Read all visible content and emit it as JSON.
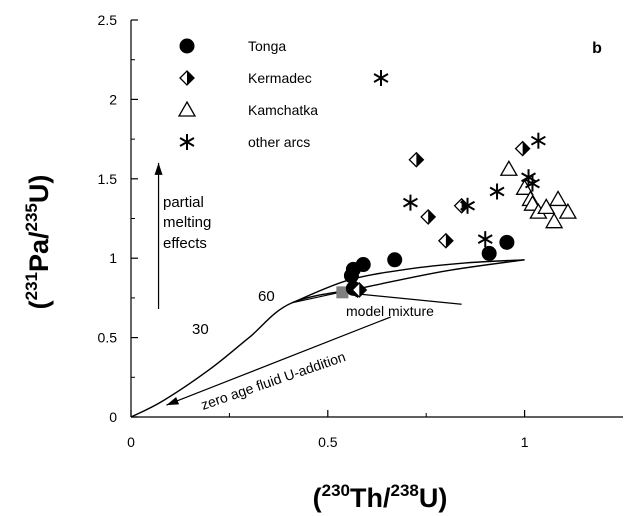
{
  "chart_data": {
    "type": "scatter",
    "panel_label": "b",
    "xlabel": {
      "pre": "(",
      "sup1": "230",
      "mid1": "Th/",
      "sup2": "238",
      "mid2": "U)"
    },
    "ylabel": {
      "pre": "(",
      "sup1": "231",
      "mid1": "Pa/",
      "sup2": "235",
      "mid2": "U)"
    },
    "xlim": [
      0,
      1.25
    ],
    "ylim": [
      0,
      2.5
    ],
    "xticks": [
      {
        "value": 0,
        "label": "0"
      },
      {
        "value": 0.5,
        "label": "0.5"
      },
      {
        "value": 1,
        "label": "1"
      }
    ],
    "yticks": [
      {
        "value": 0,
        "label": "0"
      },
      {
        "value": 0.5,
        "label": "0.5"
      },
      {
        "value": 1,
        "label": "1"
      },
      {
        "value": 1.5,
        "label": "1.5"
      },
      {
        "value": 2,
        "label": "2"
      },
      {
        "value": 2.5,
        "label": "2.5"
      }
    ],
    "grid": false,
    "legend_position": "top-left",
    "series": [
      {
        "name": "Tonga",
        "marker": "filled-circle",
        "points": [
          [
            0.56,
            0.89
          ],
          [
            0.565,
            0.93
          ],
          [
            0.59,
            0.96
          ],
          [
            0.565,
            0.81
          ],
          [
            0.67,
            0.99
          ],
          [
            0.91,
            1.03
          ],
          [
            0.955,
            1.1
          ]
        ]
      },
      {
        "name": "Kermadec",
        "marker": "half-filled-diamond",
        "points": [
          [
            0.725,
            1.62
          ],
          [
            0.755,
            1.26
          ],
          [
            0.84,
            1.33
          ],
          [
            0.8,
            1.11
          ],
          [
            0.58,
            0.8
          ],
          [
            0.995,
            1.69
          ]
        ]
      },
      {
        "name": "Kamchatka",
        "marker": "open-triangle",
        "points": [
          [
            0.96,
            1.56
          ],
          [
            1.0,
            1.44
          ],
          [
            1.015,
            1.37
          ],
          [
            1.02,
            1.34
          ],
          [
            1.035,
            1.29
          ],
          [
            1.055,
            1.32
          ],
          [
            1.075,
            1.23
          ],
          [
            1.085,
            1.37
          ],
          [
            1.11,
            1.29
          ]
        ]
      },
      {
        "name": "other arcs",
        "marker": "asterisk",
        "points": [
          [
            0.71,
            1.35
          ],
          [
            0.855,
            1.33
          ],
          [
            0.93,
            1.42
          ],
          [
            0.9,
            1.12
          ],
          [
            1.01,
            1.51
          ],
          [
            1.035,
            1.74
          ],
          [
            1.02,
            1.47
          ]
        ]
      }
    ],
    "model_points": [
      {
        "label": "model point",
        "marker": "filled-square",
        "color": "#808080",
        "point": [
          0.537,
          0.785
        ]
      }
    ],
    "curves": [
      {
        "name": "zero age fluid U-addition",
        "points": [
          [
            0.0,
            0.0
          ],
          [
            0.08,
            0.1
          ],
          [
            0.2,
            0.3
          ],
          [
            0.3,
            0.5
          ],
          [
            0.41,
            0.72
          ],
          [
            0.6,
            0.82
          ],
          [
            0.8,
            0.92
          ],
          [
            1.0,
            0.99
          ]
        ]
      },
      {
        "name": "model mixture upper",
        "points": [
          [
            0.41,
            0.72
          ],
          [
            0.55,
            0.86
          ],
          [
            0.7,
            0.93
          ],
          [
            0.85,
            0.97
          ],
          [
            1.0,
            0.99
          ]
        ]
      }
    ],
    "annotations": {
      "partial_melting_lines": [
        "partial",
        "melting",
        "effects"
      ],
      "model_mixture": "model mixture",
      "zero_age": "zero age fluid U-addition",
      "label_60": "60",
      "label_30": "30"
    },
    "legend_extra_symbol": "asterisk"
  },
  "colors": {
    "ink": "#000000",
    "model_square": "#808080"
  }
}
